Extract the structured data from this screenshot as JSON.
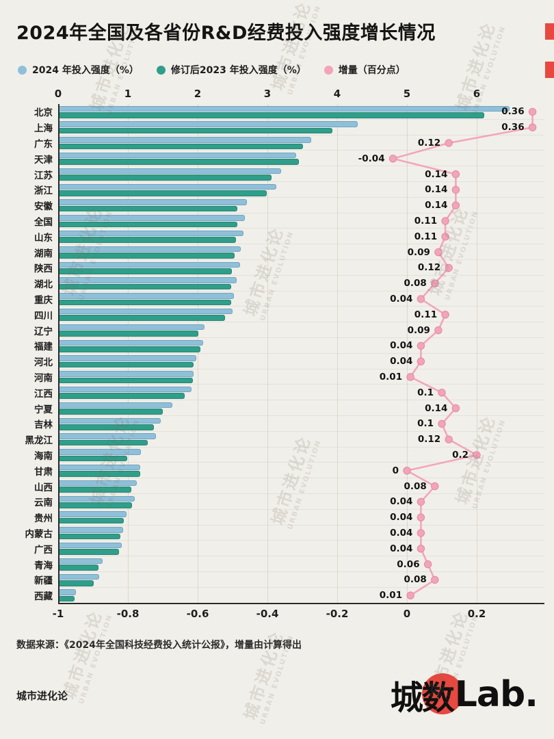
{
  "title": "2024年全国及各省份R&D经费投入强度增长情况",
  "source": "数据来源：《2024年全国科技经费投入统计公报》，增量由计算得出",
  "footer": {
    "brand": "城市进化论",
    "logo_cn": "城数",
    "logo_lab": "Lab."
  },
  "watermark": {
    "cn": "城市进化论",
    "en": "URBAN EVOLUTION"
  },
  "colors": {
    "accent_red": "#e8483f",
    "bar_2024": "#8fc0da",
    "bar_2023": "#2f9e8b",
    "increment": "#f3a4b9",
    "background": "#f1efe9"
  },
  "chart_data": {
    "type": "bar",
    "orientation": "horizontal",
    "title": "2024年全国及各省份R&D经费投入强度增长情况",
    "grid": true,
    "legend_position": "top",
    "top_axis": {
      "label": "投入强度（%）",
      "ticks": [
        0,
        1,
        2,
        3,
        4,
        5,
        6
      ],
      "range": [
        0,
        6.96
      ]
    },
    "bottom_axis": {
      "label": "增量（百分点）",
      "ticks": [
        -1,
        -0.8,
        -0.6,
        -0.4,
        -0.2,
        0,
        0.2
      ],
      "range": [
        -1,
        0.39
      ]
    },
    "categories": [
      "北京",
      "上海",
      "广东",
      "天津",
      "江苏",
      "浙江",
      "安徽",
      "全国",
      "山东",
      "湖南",
      "陕西",
      "湖北",
      "重庆",
      "四川",
      "辽宁",
      "福建",
      "河北",
      "河南",
      "江西",
      "宁夏",
      "吉林",
      "黑龙江",
      "海南",
      "甘肃",
      "山西",
      "云南",
      "贵州",
      "内蒙古",
      "广西",
      "青海",
      "新疆",
      "西藏"
    ],
    "series": [
      {
        "name": "2024 年投入强度（%）",
        "color": "#8fc0da",
        "values": [
          6.47,
          4.29,
          3.63,
          3.41,
          3.2,
          3.13,
          2.71,
          2.68,
          2.66,
          2.62,
          2.61,
          2.56,
          2.52,
          2.5,
          2.1,
          2.08,
          1.98,
          1.94,
          1.91,
          1.64,
          1.47,
          1.4,
          1.19,
          1.18,
          1.13,
          1.1,
          0.98,
          0.93,
          0.91,
          0.64,
          0.59,
          0.25
        ]
      },
      {
        "name": "修订后2023 年投入强度（%）",
        "color": "#2f9e8b",
        "values": [
          6.11,
          3.93,
          3.51,
          3.45,
          3.06,
          2.99,
          2.57,
          2.57,
          2.55,
          2.53,
          2.49,
          2.48,
          2.48,
          2.39,
          2.01,
          2.04,
          1.94,
          1.93,
          1.81,
          1.5,
          1.37,
          1.28,
          0.99,
          1.18,
          1.05,
          1.06,
          0.94,
          0.89,
          0.87,
          0.58,
          0.51,
          0.24
        ]
      },
      {
        "name": "增量（百分点）",
        "color": "#f3a4b9",
        "values": [
          0.36,
          0.36,
          0.12,
          -0.04,
          0.14,
          0.14,
          0.14,
          0.11,
          0.11,
          0.09,
          0.12,
          0.08,
          0.04,
          0.11,
          0.09,
          0.04,
          0.04,
          0.01,
          0.1,
          0.14,
          0.1,
          0.12,
          0.2,
          0.0,
          0.08,
          0.04,
          0.04,
          0.04,
          0.04,
          0.06,
          0.08,
          0.01
        ],
        "labels": [
          "0.36",
          "0.36",
          "0.12",
          "-0.04",
          "0.14",
          "0.14",
          "0.14",
          "0.11",
          "0.11",
          "0.09",
          "0.12",
          "0.08",
          "0.04",
          "0.11",
          "0.09",
          "0.04",
          "0.04",
          "0.01",
          "0.1",
          "0.14",
          "0.1",
          "0.12",
          "0.2",
          "0",
          "0.08",
          "0.04",
          "0.04",
          "0.04",
          "0.04",
          "0.06",
          "0.08",
          "0.01"
        ]
      }
    ]
  }
}
